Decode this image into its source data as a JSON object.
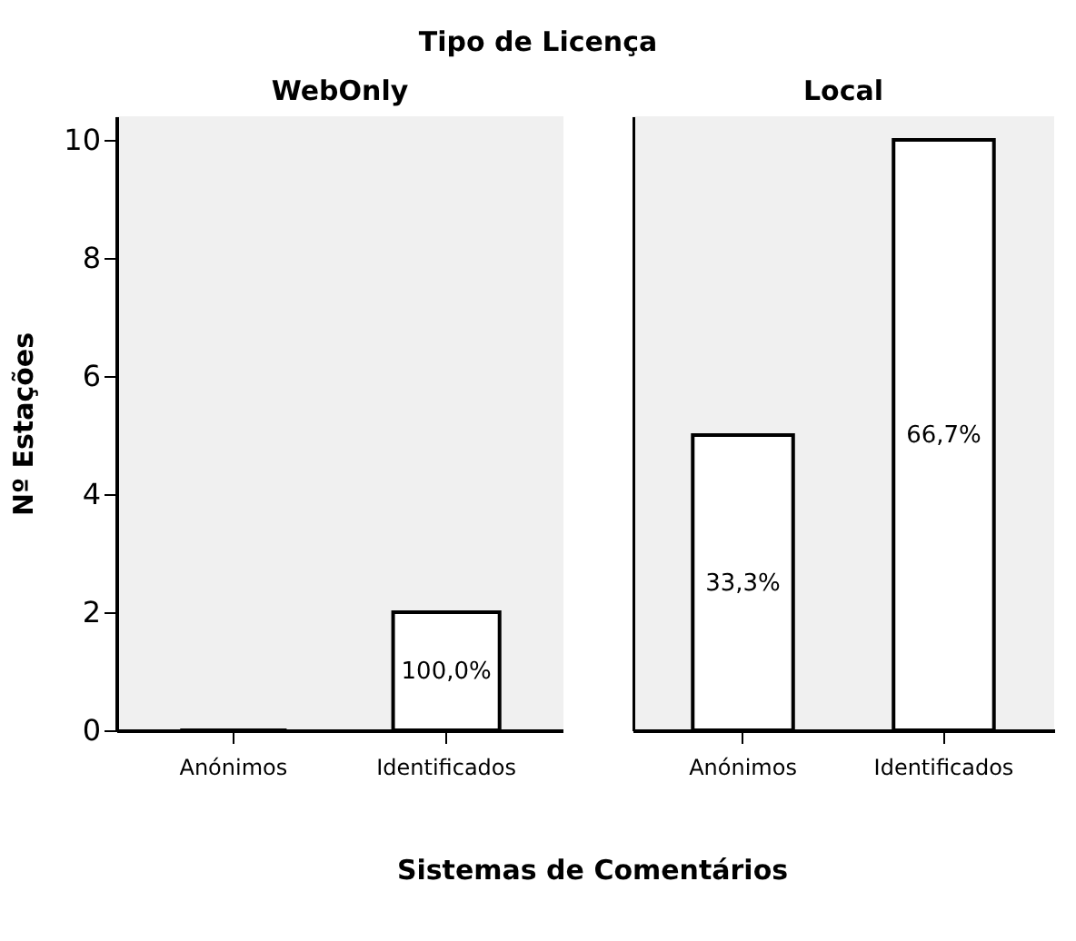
{
  "chart_data": [
    {
      "type": "bar",
      "title": "WebOnly",
      "annotations": [
        "Tipo de Licença",
        "100,0%"
      ],
      "xlabel": "Sistemas de Comentários",
      "ylabel": "Nº Estações",
      "categories": [
        "Anónimos",
        "Identificados"
      ],
      "values": [
        0,
        2
      ],
      "colors": [
        "#ffffff",
        "#ffffff"
      ],
      "ylim": [
        0,
        10.4
      ],
      "yticks": [
        0,
        2,
        4,
        6,
        8,
        10
      ],
      "grid": false
    },
    {
      "type": "bar",
      "title": "Local",
      "annotations": [
        "33,3%",
        "66,7%"
      ],
      "categories": [
        "Anónimos",
        "Identificados"
      ],
      "values": [
        5,
        10
      ],
      "colors": [
        "#ffffff",
        "#ffffff"
      ],
      "ylim": [
        0,
        10.4
      ],
      "yticks": [
        0,
        2,
        4,
        6,
        8,
        10
      ],
      "grid": false,
      "tick_labels": "x"
    }
  ]
}
